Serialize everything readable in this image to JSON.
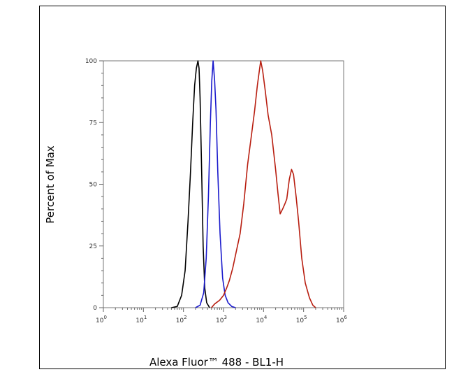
{
  "chart_data": {
    "type": "line",
    "xlabel": "Alexa Fluor™ 488 - BL1-H",
    "ylabel": "Percent of Max",
    "x_scale": "log",
    "xlim": [
      1,
      1000000
    ],
    "ylim": [
      0,
      100
    ],
    "x_ticks": [
      {
        "value": 1,
        "label": "10",
        "exp": "0"
      },
      {
        "value": 10,
        "label": "10",
        "exp": "1"
      },
      {
        "value": 100,
        "label": "10",
        "exp": "2"
      },
      {
        "value": 1000,
        "label": "10",
        "exp": "3"
      },
      {
        "value": 10000,
        "label": "10",
        "exp": "4"
      },
      {
        "value": 100000,
        "label": "10",
        "exp": "5"
      },
      {
        "value": 1000000,
        "label": "10",
        "exp": "6"
      }
    ],
    "y_ticks": [
      {
        "value": 0,
        "label": "0"
      },
      {
        "value": 25,
        "label": "25"
      },
      {
        "value": 50,
        "label": "50"
      },
      {
        "value": 75,
        "label": "75"
      },
      {
        "value": 100,
        "label": "100"
      }
    ],
    "series": [
      {
        "color": "#000000",
        "points": [
          [
            50,
            0
          ],
          [
            70,
            0.5
          ],
          [
            90,
            5
          ],
          [
            110,
            15
          ],
          [
            130,
            35
          ],
          [
            150,
            55
          ],
          [
            170,
            75
          ],
          [
            190,
            90
          ],
          [
            210,
            97
          ],
          [
            230,
            100
          ],
          [
            245,
            97
          ],
          [
            260,
            85
          ],
          [
            285,
            55
          ],
          [
            310,
            25
          ],
          [
            340,
            8
          ],
          [
            380,
            2
          ],
          [
            450,
            0
          ]
        ]
      },
      {
        "color": "#1a1acc",
        "points": [
          [
            200,
            0
          ],
          [
            260,
            1
          ],
          [
            320,
            6
          ],
          [
            370,
            20
          ],
          [
            420,
            45
          ],
          [
            470,
            75
          ],
          [
            510,
            92
          ],
          [
            550,
            100
          ],
          [
            600,
            92
          ],
          [
            650,
            80
          ],
          [
            720,
            55
          ],
          [
            820,
            30
          ],
          [
            950,
            12
          ],
          [
            1100,
            5
          ],
          [
            1300,
            2
          ],
          [
            1600,
            0.5
          ],
          [
            2000,
            0
          ]
        ]
      },
      {
        "color": "#b81e10",
        "points": [
          [
            500,
            0
          ],
          [
            600,
            1.5
          ],
          [
            800,
            3
          ],
          [
            1000,
            5
          ],
          [
            1200,
            8
          ],
          [
            1400,
            11
          ],
          [
            1700,
            16
          ],
          [
            2100,
            23
          ],
          [
            2600,
            30
          ],
          [
            3200,
            42
          ],
          [
            4000,
            58
          ],
          [
            5000,
            70
          ],
          [
            6000,
            80
          ],
          [
            7000,
            90
          ],
          [
            8000,
            97
          ],
          [
            8500,
            100
          ],
          [
            9500,
            96
          ],
          [
            11000,
            88
          ],
          [
            13000,
            78
          ],
          [
            16000,
            70
          ],
          [
            20000,
            56
          ],
          [
            23000,
            46
          ],
          [
            26000,
            38
          ],
          [
            30000,
            40
          ],
          [
            34000,
            42
          ],
          [
            38000,
            44
          ],
          [
            44000,
            52
          ],
          [
            50000,
            56
          ],
          [
            56000,
            54
          ],
          [
            65000,
            45
          ],
          [
            75000,
            35
          ],
          [
            90000,
            20
          ],
          [
            110000,
            10
          ],
          [
            140000,
            4
          ],
          [
            170000,
            1
          ],
          [
            200000,
            0
          ]
        ]
      }
    ]
  }
}
